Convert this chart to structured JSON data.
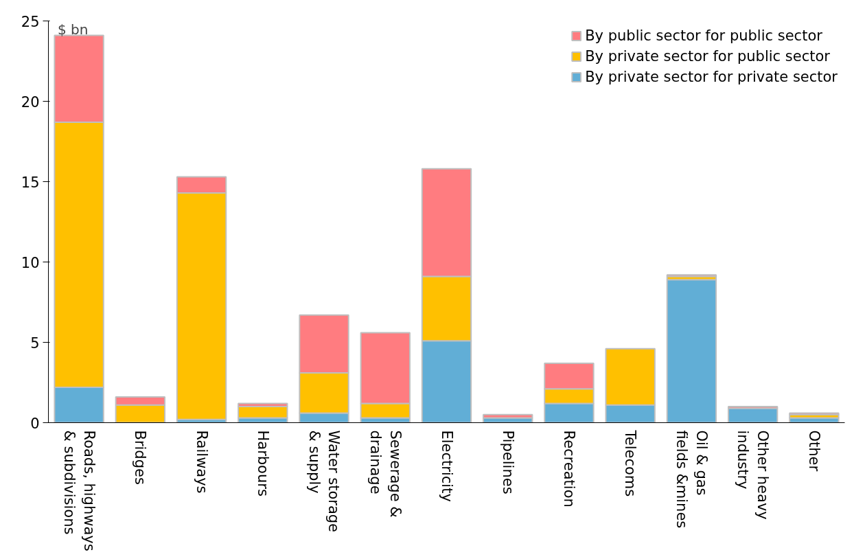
{
  "chart_data": {
    "type": "bar",
    "stacked": true,
    "ylabel": "$ bn",
    "categories": [
      "Roads, highways\n& subdivisions",
      "Bridges",
      "Railways",
      "Harbours",
      "Water storage\n& supply",
      "Sewerage  &\ndrainage",
      "Electricity",
      "Pipelines",
      "Recreation",
      "Telecoms",
      "Oil & gas\nfields &mines",
      "Other heavy\nindustry",
      "Other"
    ],
    "series": [
      {
        "name": "By private sector for private sector",
        "color": "#61aed6",
        "values": [
          2.2,
          0,
          0.2,
          0.3,
          0.6,
          0.3,
          5.1,
          0.3,
          1.2,
          1.1,
          8.9,
          0.9,
          0.3
        ]
      },
      {
        "name": "By private sector for public sector",
        "color": "#ffc000",
        "values": [
          16.5,
          1.1,
          14.1,
          0.7,
          2.5,
          0.9,
          4.0,
          null,
          0.9,
          3.5,
          0.2,
          0,
          0.2
        ]
      },
      {
        "name": "By public sector for public sector",
        "color": "#ff7c80",
        "values": [
          5.4,
          0.5,
          1.0,
          0.2,
          3.6,
          4.4,
          6.7,
          0.2,
          1.6,
          0,
          0.1,
          0.1,
          0.1
        ]
      }
    ],
    "ylim": [
      0,
      25
    ],
    "yticks": [
      0,
      5,
      10,
      15,
      20,
      25
    ],
    "grid": false,
    "legend": "top right"
  }
}
